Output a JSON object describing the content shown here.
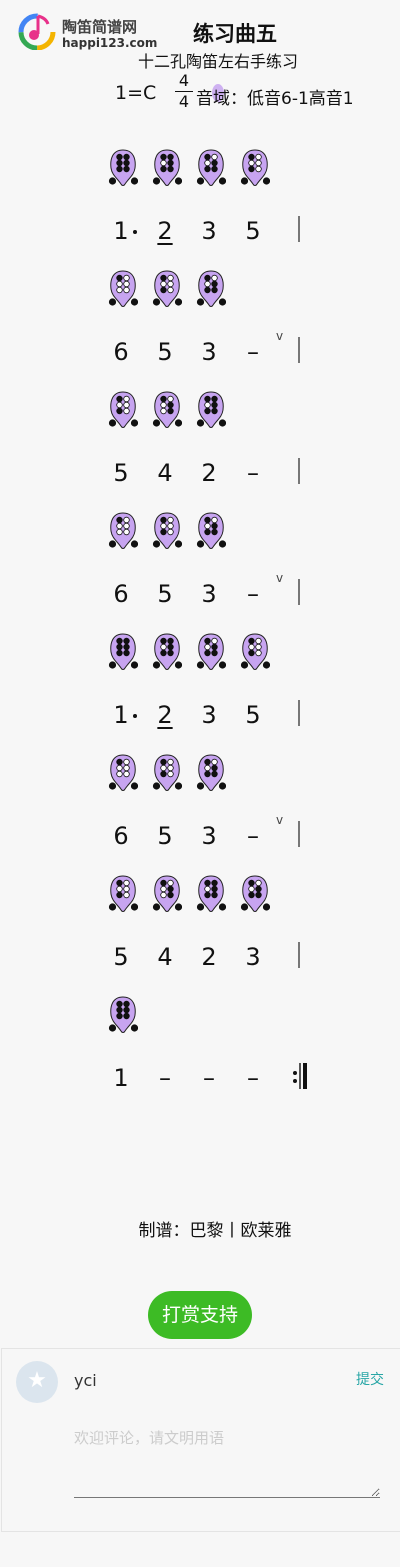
{
  "site": {
    "name": "陶笛简谱网",
    "domain": "happi123.com"
  },
  "score": {
    "title": "练习曲五",
    "subtitle": "十二孔陶笛左右手练习",
    "key": "1=C",
    "time_top": "4",
    "time_bottom": "4",
    "key_note": "音域：低音6-1高音1"
  },
  "rows": [
    {
      "fingerings": [
        "1",
        "2",
        "3",
        "5"
      ],
      "notes": [
        {
          "t": "1",
          "dot": true
        },
        {
          "t": "2",
          "u": true
        },
        {
          "t": "3"
        },
        {
          "t": "5"
        }
      ],
      "bar": "single",
      "breath": false
    },
    {
      "fingerings": [
        "6",
        "5",
        "3"
      ],
      "notes": [
        {
          "t": "6"
        },
        {
          "t": "5"
        },
        {
          "t": "3"
        },
        {
          "t": "–"
        }
      ],
      "bar": "single",
      "breath": true
    },
    {
      "fingerings": [
        "5",
        "4",
        "2"
      ],
      "notes": [
        {
          "t": "5"
        },
        {
          "t": "4"
        },
        {
          "t": "2"
        },
        {
          "t": "–"
        }
      ],
      "bar": "single",
      "breath": false
    },
    {
      "fingerings": [
        "6",
        "5",
        "3"
      ],
      "notes": [
        {
          "t": "6"
        },
        {
          "t": "5"
        },
        {
          "t": "3"
        },
        {
          "t": "–"
        }
      ],
      "bar": "single",
      "breath": true
    },
    {
      "fingerings": [
        "1",
        "2",
        "3",
        "5"
      ],
      "notes": [
        {
          "t": "1",
          "dot": true
        },
        {
          "t": "2",
          "u": true
        },
        {
          "t": "3"
        },
        {
          "t": "5"
        }
      ],
      "bar": "single",
      "breath": false
    },
    {
      "fingerings": [
        "6",
        "5",
        "3"
      ],
      "notes": [
        {
          "t": "6"
        },
        {
          "t": "5"
        },
        {
          "t": "3"
        },
        {
          "t": "–"
        }
      ],
      "bar": "single",
      "breath": true
    },
    {
      "fingerings": [
        "5",
        "4",
        "2",
        "3"
      ],
      "notes": [
        {
          "t": "5"
        },
        {
          "t": "4"
        },
        {
          "t": "2"
        },
        {
          "t": "3"
        }
      ],
      "bar": "single",
      "breath": false
    },
    {
      "fingerings": [
        "1"
      ],
      "notes": [
        {
          "t": "1"
        },
        {
          "t": "–"
        },
        {
          "t": "–"
        },
        {
          "t": "–"
        }
      ],
      "bar": "repeat-end",
      "breath": false
    }
  ],
  "credit": "制谱：巴黎丨欧莱雅",
  "donate_label": "打赏支持",
  "comment": {
    "username": "yci",
    "submit_label": "提交",
    "placeholder": "欢迎评论，请文明用语"
  },
  "colors": {
    "ocarina": "#c7a4f0",
    "donate": "#3dbb25",
    "submit": "#27a6a6"
  }
}
